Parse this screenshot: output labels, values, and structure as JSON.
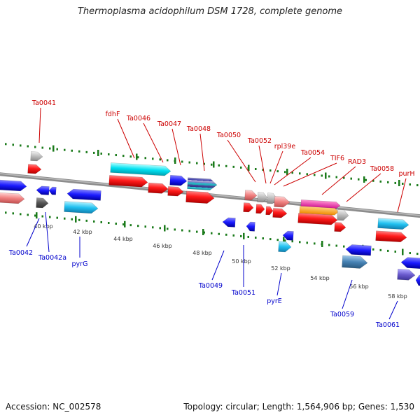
{
  "title": "Thermoplasma acidophilum DSM 1728, complete genome",
  "footer": {
    "accession": "Accession: NC_002578",
    "topology": "Topology: circular; Length: 1,564,906 bp; Genes: 1,530"
  },
  "colors": {
    "forward_label": "#cc0000",
    "reverse_label": "#0000cc",
    "backbone": "#888888",
    "tick": "#1a7a1a",
    "kbp_label": "#333333"
  },
  "scale_labels": [
    "40 kbp",
    "42 kbp",
    "44 kbp",
    "46 kbp",
    "48 kbp",
    "50 kbp",
    "52 kbp",
    "54 kbp",
    "56 kbp",
    "58 kbp"
  ],
  "upper_labels": [
    "Ta0041",
    "fdhF",
    "Ta0046",
    "Ta0047",
    "Ta0048",
    "Ta0050",
    "Ta0052",
    "rpl39e",
    "Ta0054",
    "TIF6",
    "RAD3",
    "Ta0058",
    "purH"
  ],
  "lower_labels": [
    "Ta0042",
    "Ta0042a",
    "pyrG",
    "Ta0049",
    "Ta0051",
    "pyrE",
    "Ta0059",
    "Ta0061"
  ]
}
